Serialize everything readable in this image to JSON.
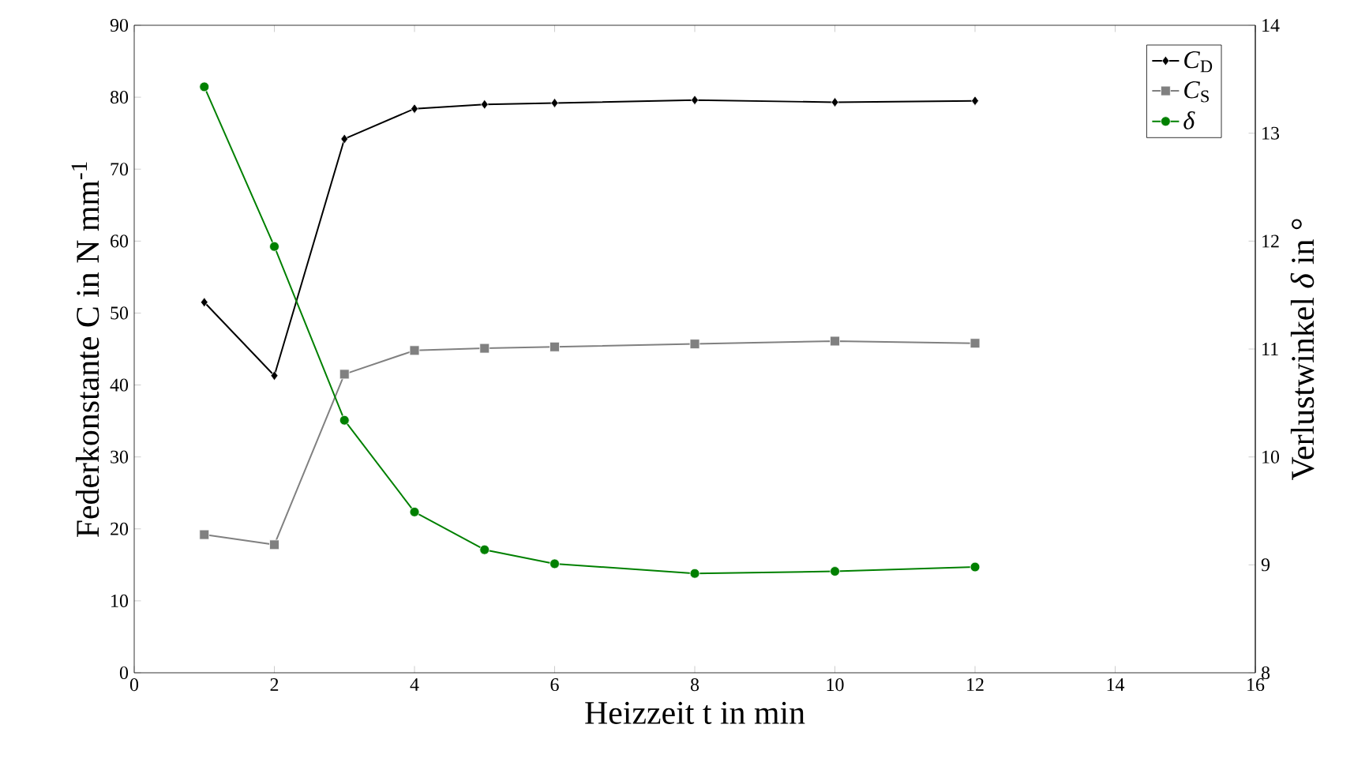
{
  "chart_data": {
    "type": "line",
    "xlabel": "Heizzeit t in min",
    "ylabel": "Federkonstante C in N mm$^{-1}$",
    "y2label": "Verlustwinkel *δ* in °",
    "x": [
      1,
      2,
      3,
      4,
      5,
      6,
      8,
      10,
      12
    ],
    "series": [
      {
        "name": "*C*$_{D}$",
        "color": "#000000",
        "marker": "diamond",
        "values": [
          51.5,
          41.3,
          74.2,
          78.4,
          79.0,
          79.2,
          79.6,
          79.3,
          79.5
        ]
      },
      {
        "name": "*C*$_{S}$",
        "color": "#808080",
        "marker": "square",
        "values": [
          19.2,
          17.8,
          41.5,
          44.8,
          45.1,
          45.3,
          45.7,
          46.1,
          45.8
        ]
      },
      {
        "name": "*δ*",
        "color": "#008000",
        "marker": "circle",
        "axis": "y2",
        "values": [
          13.43,
          11.95,
          10.34,
          9.49,
          9.14,
          9.01,
          8.92,
          8.94,
          8.98
        ]
      }
    ],
    "xlim": [
      0,
      16
    ],
    "xticks": [
      0,
      2,
      4,
      6,
      8,
      10,
      12,
      14,
      16
    ],
    "ylim": [
      0,
      90
    ],
    "yticks": [
      0,
      10,
      20,
      30,
      40,
      50,
      60,
      70,
      80,
      90
    ],
    "y2lim": [
      8,
      14
    ],
    "y2ticks": [
      8,
      9,
      10,
      11,
      12,
      13,
      14
    ],
    "legend": "top right",
    "line_style": "solid"
  }
}
